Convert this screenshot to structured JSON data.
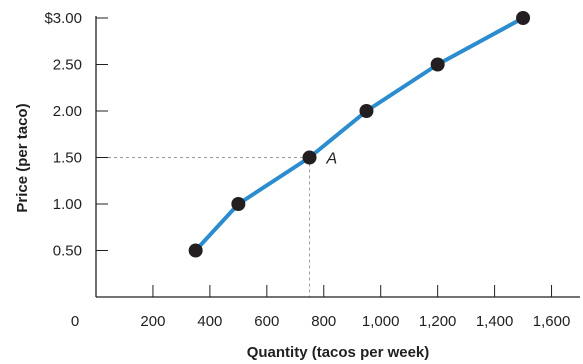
{
  "chart_data": {
    "type": "line",
    "xlabel": "Quantity (tacos per week)",
    "ylabel": "Price (per taco)",
    "xlim": [
      0,
      1700
    ],
    "ylim": [
      0,
      3.0
    ],
    "grid": false,
    "x_ticks": [
      {
        "value": 200,
        "label": "200"
      },
      {
        "value": 400,
        "label": "400"
      },
      {
        "value": 600,
        "label": "600"
      },
      {
        "value": 800,
        "label": "800"
      },
      {
        "value": 1000,
        "label": "1,000"
      },
      {
        "value": 1200,
        "label": "1,200"
      },
      {
        "value": 1400,
        "label": "1,400"
      },
      {
        "value": 1600,
        "label": "1,600"
      }
    ],
    "y_ticks": [
      {
        "value": 0.5,
        "label": "0.50"
      },
      {
        "value": 1.0,
        "label": "1.00"
      },
      {
        "value": 1.5,
        "label": "1.50"
      },
      {
        "value": 2.0,
        "label": "2.00"
      },
      {
        "value": 2.5,
        "label": "2.50"
      },
      {
        "value": 3.0,
        "label": "$3.00"
      }
    ],
    "origin_label": "0",
    "series": [
      {
        "color": "#2b8ccf",
        "points": [
          {
            "x": 350,
            "y": 0.5
          },
          {
            "x": 500,
            "y": 1.0
          },
          {
            "x": 750,
            "y": 1.5
          },
          {
            "x": 950,
            "y": 2.0
          },
          {
            "x": 1200,
            "y": 2.5
          },
          {
            "x": 1500,
            "y": 3.0
          }
        ]
      }
    ],
    "annotation": {
      "label": "A",
      "x": 750,
      "y": 1.5,
      "dashed_guides": true
    },
    "colors": {
      "line": "#2b8ccf",
      "marker": "#231f20",
      "axis": "#231f20",
      "guide": "#9a9a9a"
    }
  }
}
